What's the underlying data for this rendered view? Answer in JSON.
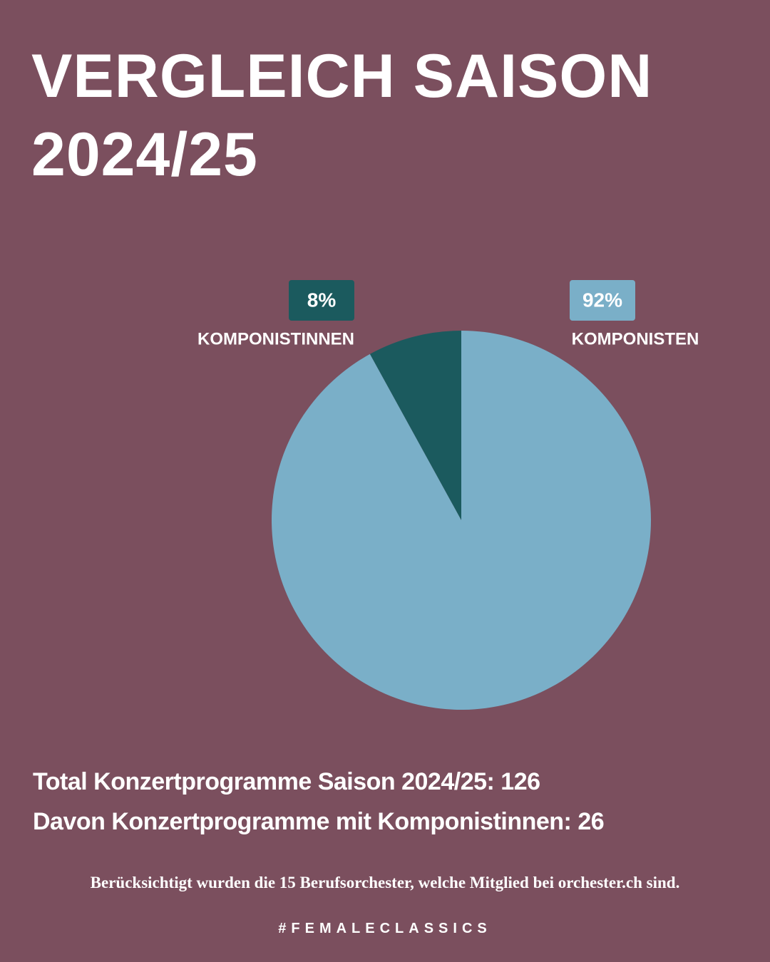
{
  "chart_data": {
    "type": "pie",
    "title": "Vergleich Saison 2024/25",
    "categories": [
      "Komponistinnen",
      "Komponisten"
    ],
    "values": [
      8,
      92
    ],
    "value_labels": [
      "8%",
      "92%"
    ],
    "colors": [
      "#1b5a5e",
      "#7aafc8"
    ]
  },
  "notes": [
    "Total Konzertprogramme Saison 2024/25: 126",
    "Davon Konzertprogramme mit Komponistinnen: 26"
  ],
  "footnote": "Berücksichtigt wurden die 15 Berufsorchester, welche Mitglied bei orchester.ch sind.",
  "hashtag": "#FEMALECLASSICS"
}
